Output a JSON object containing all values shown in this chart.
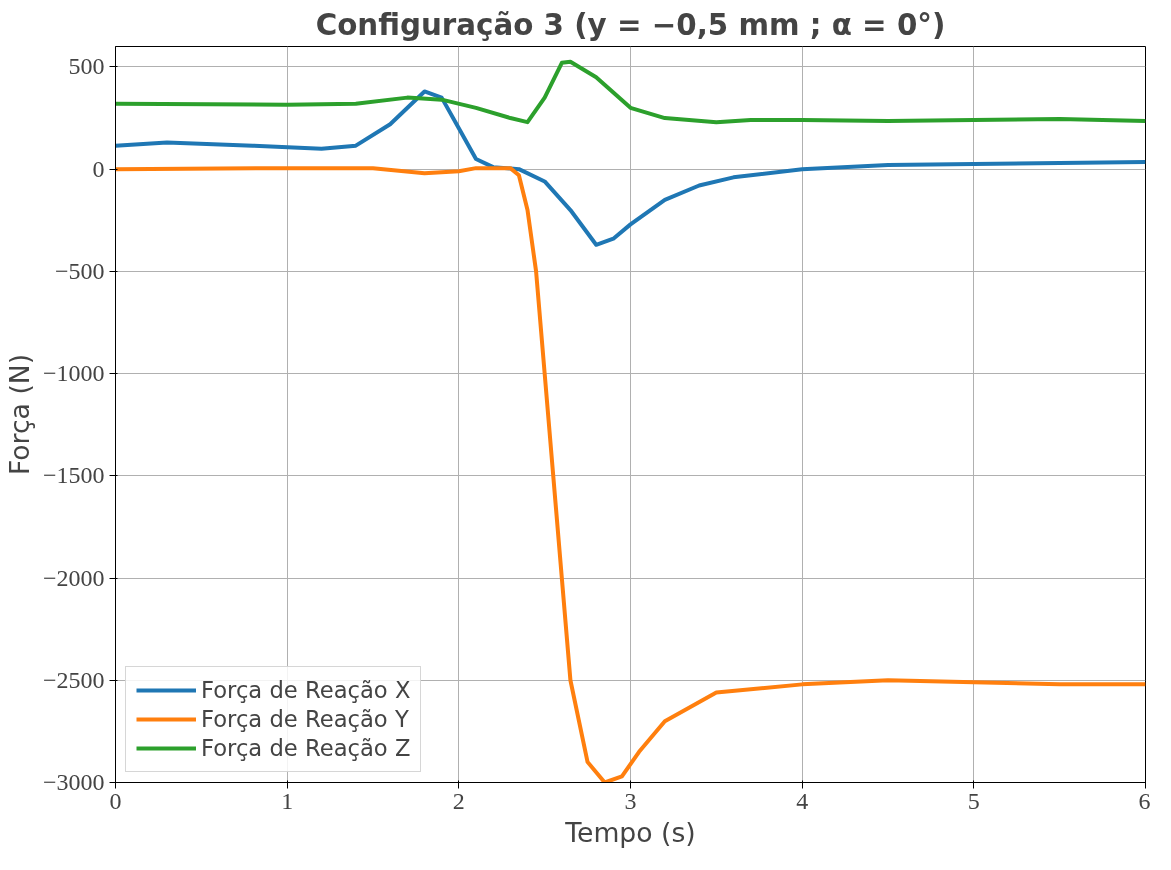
{
  "chart_data": {
    "type": "line",
    "title": "Configuração 3 (y = −0,5 mm ; α = 0°)",
    "xlabel": "Tempo (s)",
    "ylabel": "Força (N)",
    "xlim": [
      0,
      6
    ],
    "ylim": [
      -3000,
      600
    ],
    "xticks": [
      0,
      1,
      2,
      3,
      4,
      5,
      6
    ],
    "yticks": [
      {
        "value": -3000,
        "label": "−3000"
      },
      {
        "value": -2500,
        "label": "−2500"
      },
      {
        "value": -2000,
        "label": "−2000"
      },
      {
        "value": -1500,
        "label": "−1500"
      },
      {
        "value": -1000,
        "label": "−1000"
      },
      {
        "value": -500,
        "label": "−500"
      },
      0,
      500
    ],
    "grid": true,
    "legend": "bottom left",
    "line_style": "solid",
    "marker": "none",
    "series": [
      {
        "name": "Força de Reação X",
        "color": "#1f77b4",
        "x": [
          0,
          0.3,
          0.8,
          1.2,
          1.4,
          1.6,
          1.8,
          1.9,
          2.0,
          2.1,
          2.2,
          2.35,
          2.5,
          2.65,
          2.8,
          2.9,
          3.0,
          3.2,
          3.4,
          3.6,
          4.0,
          4.5,
          5.0,
          5.5,
          6.0
        ],
        "values": [
          115,
          130,
          115,
          100,
          115,
          220,
          380,
          350,
          200,
          50,
          10,
          0,
          -60,
          -200,
          -370,
          -340,
          -270,
          -150,
          -80,
          -40,
          0,
          20,
          25,
          30,
          35
        ]
      },
      {
        "name": "Força de Reação Y",
        "color": "#ff7f0e",
        "x": [
          0,
          1,
          1.5,
          1.8,
          2.0,
          2.1,
          2.3,
          2.35,
          2.4,
          2.45,
          2.5,
          2.55,
          2.6,
          2.65,
          2.75,
          2.85,
          2.95,
          3.05,
          3.2,
          3.5,
          4.0,
          4.5,
          5.0,
          5.5,
          6.0
        ],
        "values": [
          0,
          5,
          5,
          -20,
          -10,
          5,
          5,
          -30,
          -200,
          -500,
          -1000,
          -1500,
          -2000,
          -2500,
          -2900,
          -3000,
          -2970,
          -2850,
          -2700,
          -2560,
          -2520,
          -2500,
          -2510,
          -2520,
          -2520
        ]
      },
      {
        "name": "Força de Reação Z",
        "color": "#2ca02c",
        "x": [
          0,
          1,
          1.4,
          1.7,
          1.9,
          2.1,
          2.3,
          2.4,
          2.5,
          2.6,
          2.65,
          2.8,
          3.0,
          3.2,
          3.5,
          3.7,
          4.0,
          4.5,
          5.0,
          5.5,
          6.0
        ],
        "values": [
          320,
          315,
          320,
          350,
          340,
          300,
          250,
          230,
          350,
          520,
          525,
          450,
          300,
          250,
          230,
          240,
          240,
          235,
          240,
          245,
          235
        ]
      }
    ]
  }
}
